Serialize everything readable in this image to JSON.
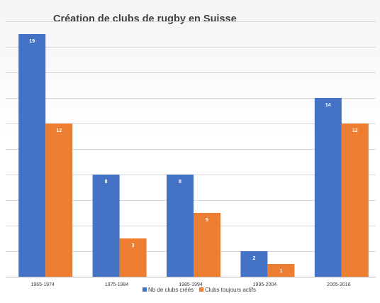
{
  "chart_data": {
    "type": "bar",
    "title": "Création de clubs de rugby en Suisse",
    "categories": [
      "1965-1974",
      "1975-1984",
      "1985-1994",
      "1995-2004",
      "2005-2016"
    ],
    "series": [
      {
        "name": "Nb de clubs créés",
        "values": [
          19,
          8,
          8,
          2,
          14
        ],
        "color": "#4472C4"
      },
      {
        "name": "Clubs toujours actifs",
        "values": [
          12,
          3,
          5,
          1,
          12
        ],
        "color": "#ED7D31"
      }
    ],
    "ylim": [
      0,
      20
    ],
    "y_major_unit": 2,
    "y_tick_labels_visible": false,
    "grid": true,
    "legend_position": "bottom",
    "data_labels": true
  }
}
